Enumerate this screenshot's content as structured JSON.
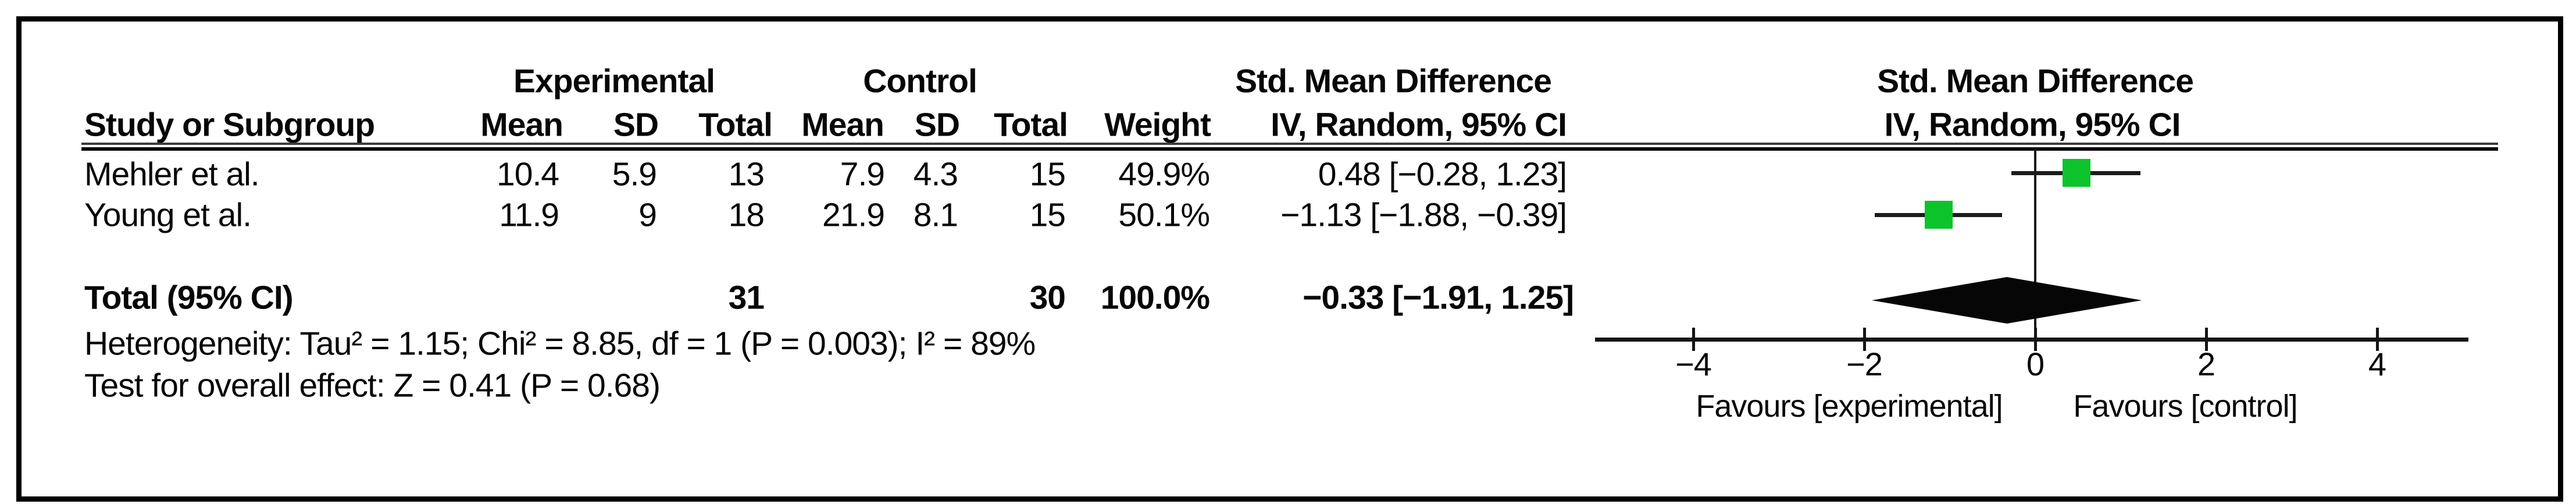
{
  "header": {
    "group_experimental": "Experimental",
    "group_control": "Control",
    "smd_left_title": "Std. Mean Difference",
    "smd_left_subtitle": "IV, Random, 95% CI",
    "smd_right_title": "Std. Mean Difference",
    "smd_right_subtitle": "IV, Random, 95% CI",
    "study": "Study or Subgroup",
    "exp_mean": "Mean",
    "exp_sd": "SD",
    "exp_total": "Total",
    "ctrl_mean": "Mean",
    "ctrl_sd": "SD",
    "ctrl_total": "Total",
    "weight": "Weight"
  },
  "rows": [
    {
      "study": "Mehler et al.",
      "exp_mean": "10.4",
      "exp_sd": "5.9",
      "exp_total": "13",
      "ctrl_mean": "7.9",
      "ctrl_sd": "4.3",
      "ctrl_total": "15",
      "weight": "49.9%",
      "effect": "0.48 [−0.28, 1.23]"
    },
    {
      "study": "Young et al.",
      "exp_mean": "11.9",
      "exp_sd": "9",
      "exp_total": "18",
      "ctrl_mean": "21.9",
      "ctrl_sd": "8.1",
      "ctrl_total": "15",
      "weight": "50.1%",
      "effect": "−1.13 [−1.88, −0.39]"
    }
  ],
  "total": {
    "label": "Total (95% CI)",
    "exp_total": "31",
    "ctrl_total": "30",
    "weight": "100.0%",
    "effect": "−0.33 [−1.91, 1.25]"
  },
  "footnotes": {
    "heterogeneity": "Heterogeneity: Tau² = 1.15; Chi² = 8.85, df = 1 (P = 0.003); I² = 89%",
    "overall_effect": "Test for overall effect: Z = 0.41 (P = 0.68)"
  },
  "colors": {
    "marker_green": "#0cc32c",
    "ink": "#060606"
  },
  "chart_data": {
    "type": "scatter",
    "subtype": "forest-plot",
    "title": "Std. Mean Difference — IV, Random, 95% CI",
    "studies": [
      {
        "name": "Mehler et al.",
        "smd": 0.48,
        "ci_low": -0.28,
        "ci_high": 1.23,
        "weight_pct": 49.9
      },
      {
        "name": "Young et al.",
        "smd": -1.13,
        "ci_low": -1.88,
        "ci_high": -0.39,
        "weight_pct": 50.1
      }
    ],
    "total": {
      "name": "Total (95% CI)",
      "smd": -0.33,
      "ci_low": -1.91,
      "ci_high": 1.25,
      "weight_pct": 100.0
    },
    "axis": {
      "tick_values": [
        -4,
        -2,
        0,
        2,
        4
      ],
      "tick_labels": [
        "−4",
        "−2",
        "0",
        "2",
        "4"
      ],
      "xlim": [
        -5.1,
        5.1
      ],
      "favours_left": "Favours [experimental]",
      "favours_right": "Favours [control]"
    },
    "heterogeneity": {
      "tau2": 1.15,
      "chi2": 8.85,
      "df": 1,
      "p": 0.003,
      "i2_pct": 89
    },
    "overall_effect": {
      "z": 0.41,
      "p": 0.68
    }
  }
}
